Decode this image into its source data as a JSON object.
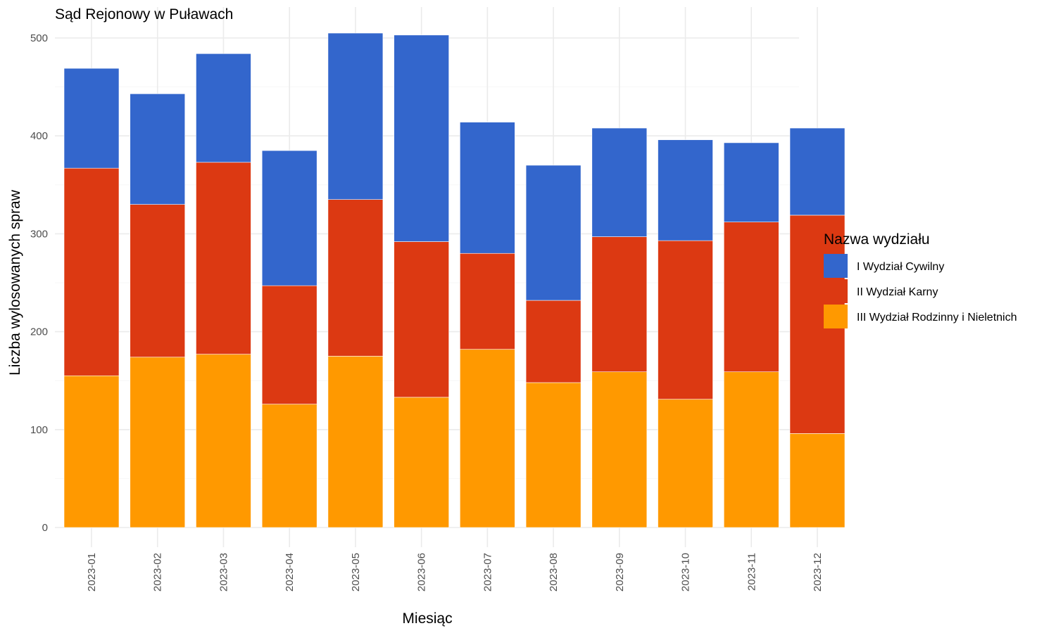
{
  "chart_data": {
    "type": "bar",
    "stacked": true,
    "title": "Sąd Rejonowy w Puławach",
    "xlabel": "Miesiąc",
    "ylabel": "Liczba wylosowanych spraw",
    "ylim": [
      0,
      520
    ],
    "yticks": [
      0,
      100,
      200,
      300,
      400,
      500
    ],
    "grid": true,
    "legend_position": "right",
    "legend_title": "Nazwa wydziału",
    "categories": [
      "2023-01",
      "2023-02",
      "2023-03",
      "2023-04",
      "2023-05",
      "2023-06",
      "2023-07",
      "2023-08",
      "2023-09",
      "2023-10",
      "2023-11",
      "2023-12"
    ],
    "series": [
      {
        "name": "III Wydział Rodzinny i Nieletnich",
        "color": "#ff9900",
        "values": [
          155,
          174,
          177,
          126,
          175,
          133,
          182,
          148,
          159,
          131,
          159,
          96
        ]
      },
      {
        "name": "II Wydział Karny",
        "color": "#dc3912",
        "values": [
          212,
          156,
          196,
          121,
          160,
          159,
          98,
          84,
          138,
          162,
          153,
          223
        ]
      },
      {
        "name": "I Wydział Cywilny",
        "color": "#3366cc",
        "values": [
          102,
          113,
          111,
          138,
          170,
          211,
          134,
          138,
          111,
          103,
          81,
          89
        ]
      }
    ],
    "legend_order": [
      "I Wydział Cywilny",
      "II Wydział Karny",
      "III Wydział Rodzinny i Nieletnich"
    ]
  }
}
